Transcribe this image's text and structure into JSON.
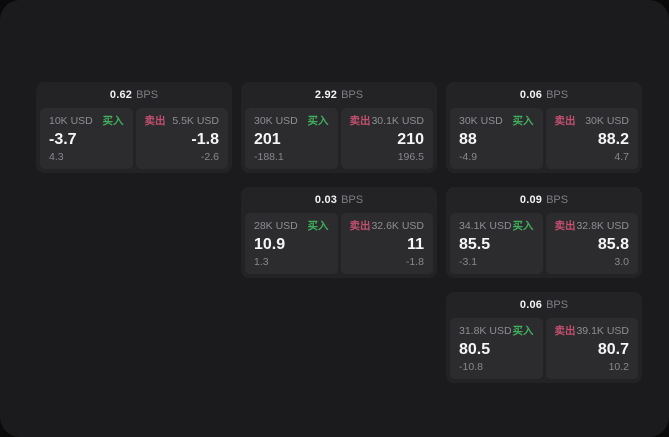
{
  "labels": {
    "bps_unit": "BPS",
    "buy": "买入",
    "sell": "卖出"
  },
  "colors": {
    "page_bg": "#0a0a0a",
    "panel_bg": "#1b1b1d",
    "card_bg": "#232326",
    "tile_bg": "#2c2c2f",
    "buy_green": "#3fae5c",
    "sell_red": "#c14f6e",
    "text_primary": "#f5f5f6",
    "text_muted": "#8e8e93"
  },
  "cards": [
    {
      "col": 1,
      "row": 1,
      "bps": "0.62",
      "buy": {
        "size": "10K USD",
        "price": "-3.7",
        "delta": "4.3"
      },
      "sell": {
        "size": "5.5K USD",
        "price": "-1.8",
        "delta": "-2.6"
      }
    },
    {
      "col": 2,
      "row": 1,
      "bps": "2.92",
      "buy": {
        "size": "30K USD",
        "price": "201",
        "delta": "-188.1"
      },
      "sell": {
        "size": "30.1K USD",
        "price": "210",
        "delta": "196.5"
      }
    },
    {
      "col": 3,
      "row": 1,
      "bps": "0.06",
      "buy": {
        "size": "30K USD",
        "price": "88",
        "delta": "-4.9"
      },
      "sell": {
        "size": "30K USD",
        "price": "88.2",
        "delta": "4.7"
      }
    },
    {
      "col": 2,
      "row": 2,
      "bps": "0.03",
      "buy": {
        "size": "28K USD",
        "price": "10.9",
        "delta": "1.3"
      },
      "sell": {
        "size": "32.6K USD",
        "price": "11",
        "delta": "-1.8"
      }
    },
    {
      "col": 3,
      "row": 2,
      "bps": "0.09",
      "buy": {
        "size": "34.1K USD",
        "price": "85.5",
        "delta": "-3.1"
      },
      "sell": {
        "size": "32.8K USD",
        "price": "85.8",
        "delta": "3.0"
      }
    },
    {
      "col": 3,
      "row": 3,
      "bps": "0.06",
      "buy": {
        "size": "31.8K USD",
        "price": "80.5",
        "delta": "-10.8"
      },
      "sell": {
        "size": "39.1K USD",
        "price": "80.7",
        "delta": "10.2"
      }
    }
  ]
}
